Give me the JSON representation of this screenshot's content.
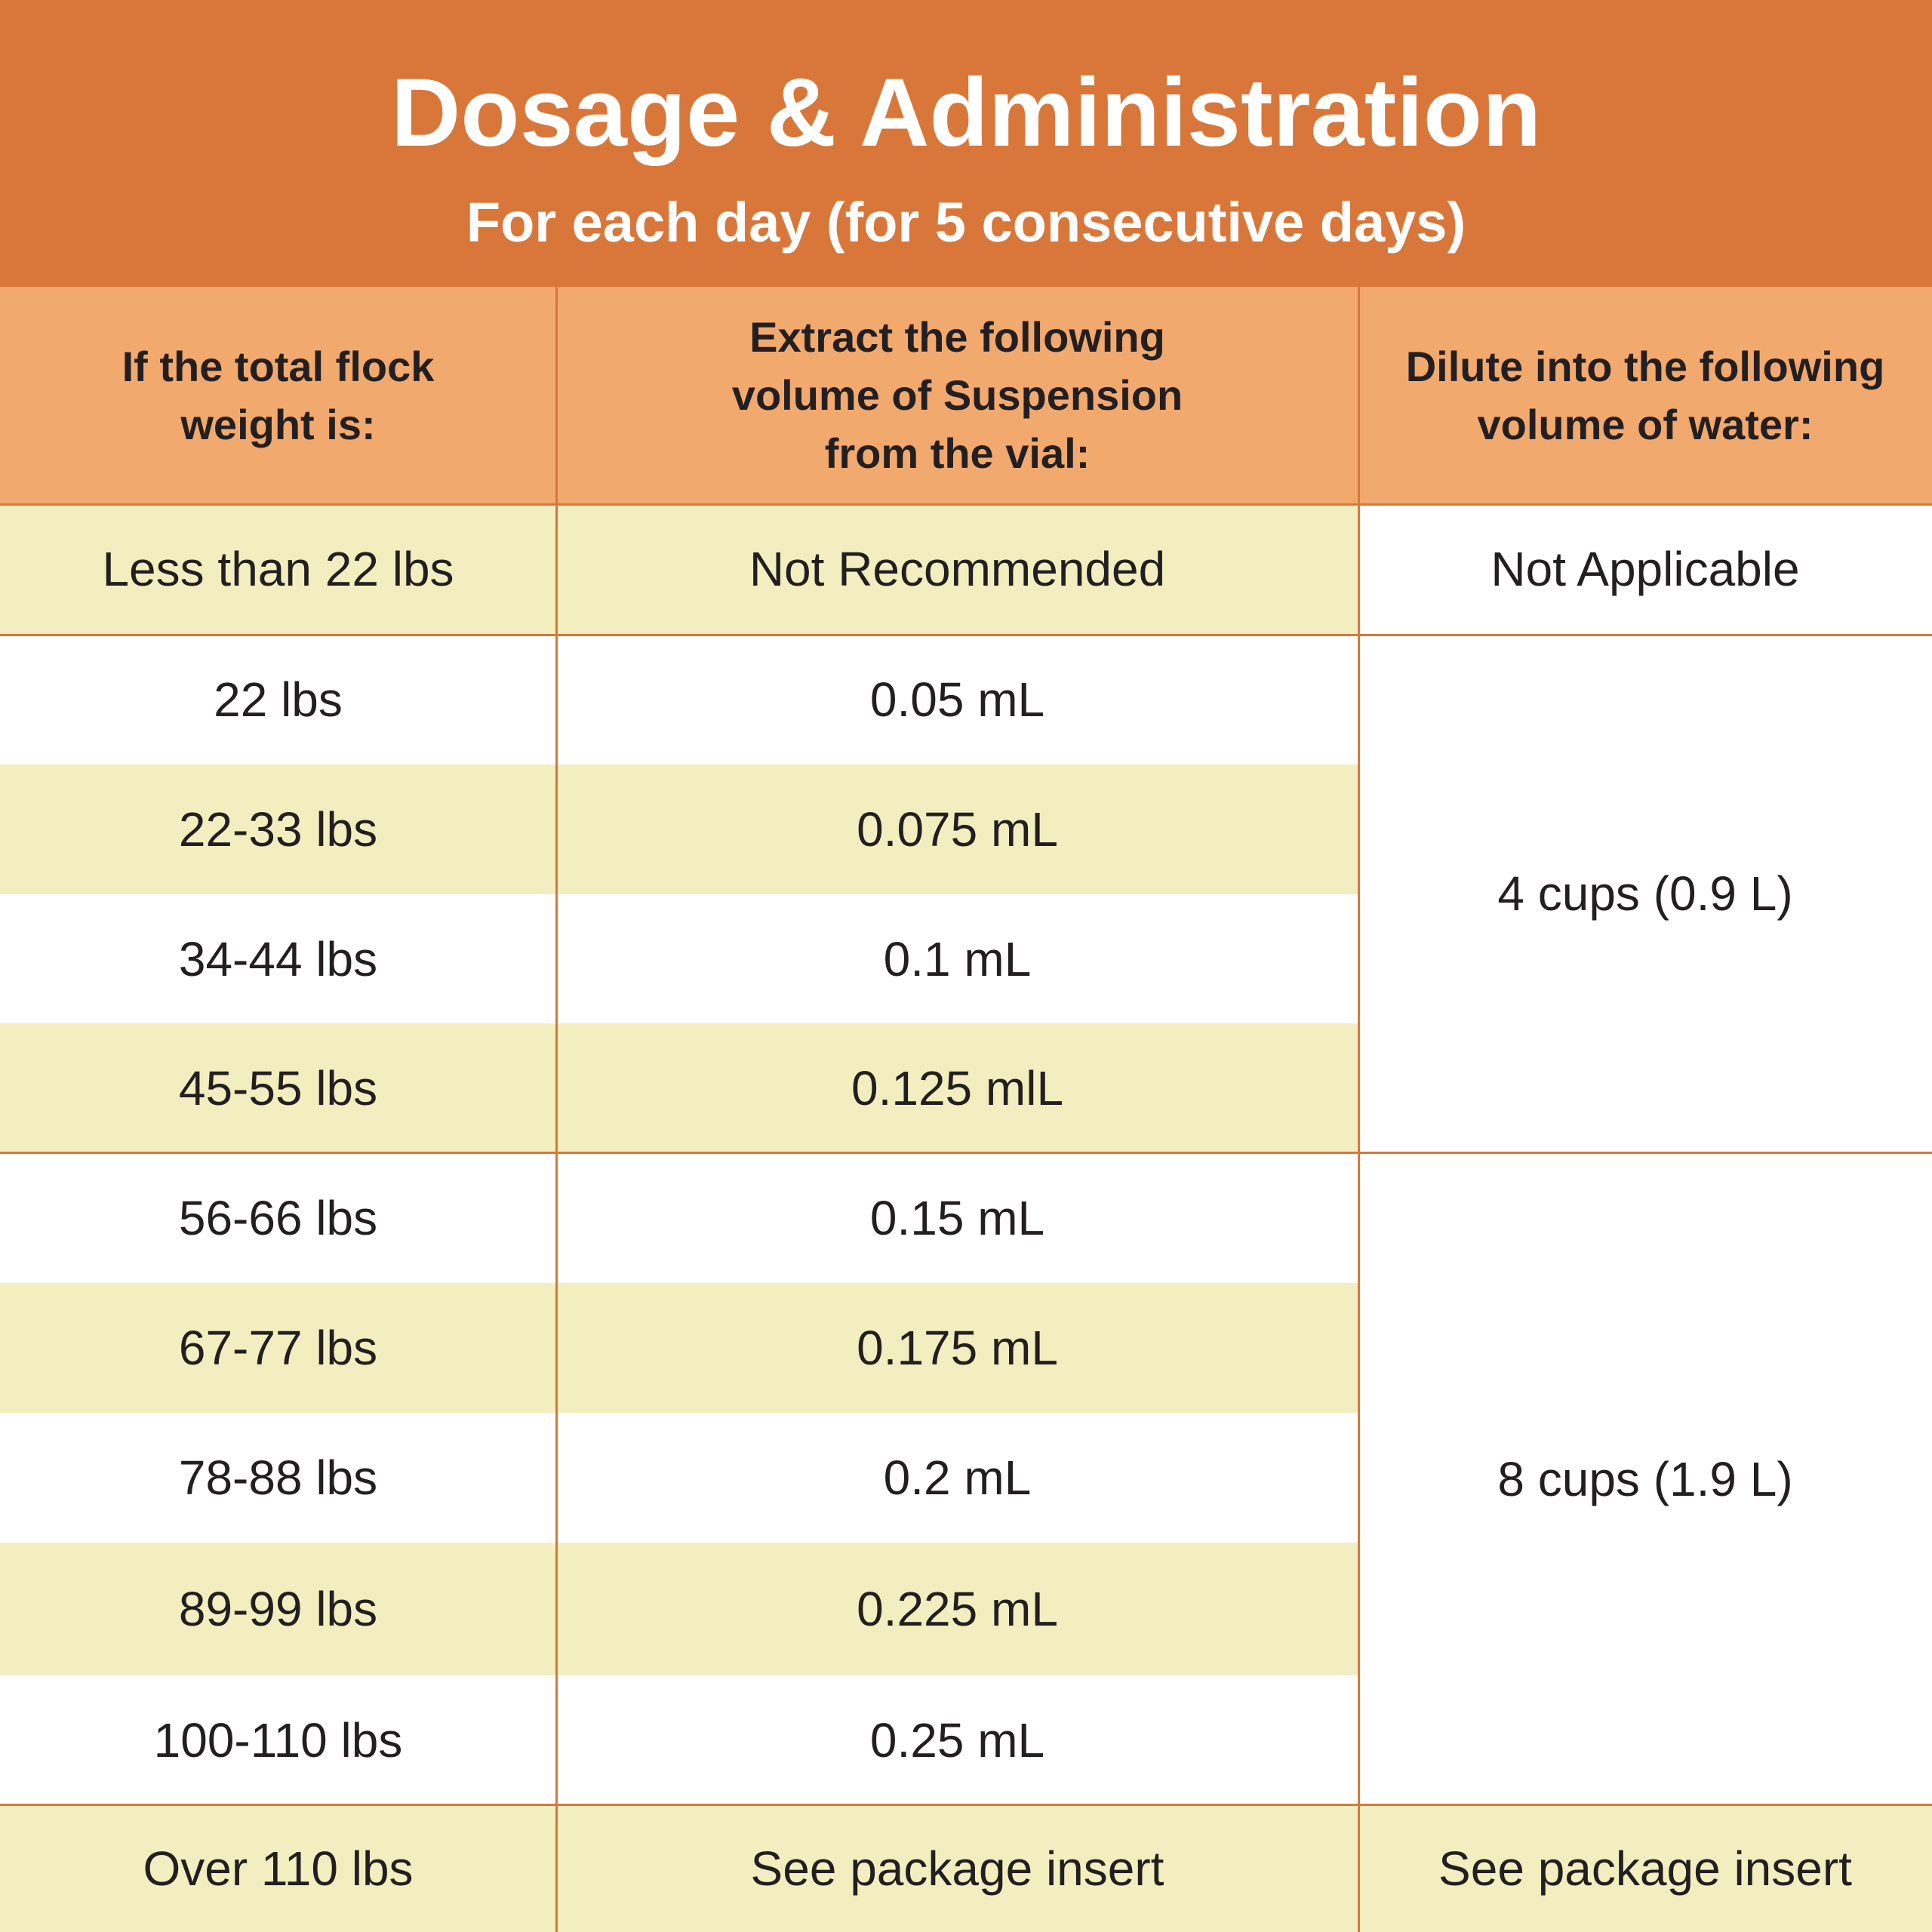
{
  "header": {
    "title": "Dosage & Administration",
    "subtitle": "For each day (for 5 consecutive days)"
  },
  "columns": [
    [
      "If the total flock",
      "weight is:"
    ],
    [
      "Extract the following",
      "volume of Suspension",
      "from the vial:"
    ],
    [
      "Dilute into the following",
      "volume of water:"
    ]
  ],
  "rows": [
    {
      "weight": "Less than 22 lbs",
      "volume": "Not Recommended"
    },
    {
      "weight": "22 lbs",
      "volume": "0.05 mL"
    },
    {
      "weight": "22-33 lbs",
      "volume": "0.075 mL"
    },
    {
      "weight": "34-44 lbs",
      "volume": "0.1 mL"
    },
    {
      "weight": "45-55 lbs",
      "volume": "0.125 mlL"
    },
    {
      "weight": "56-66 lbs",
      "volume": "0.15 mL"
    },
    {
      "weight": "67-77 lbs",
      "volume": "0.175 mL"
    },
    {
      "weight": "78-88 lbs",
      "volume": "0.2 mL"
    },
    {
      "weight": "89-99 lbs",
      "volume": "0.225 mL"
    },
    {
      "weight": "100-110 lbs",
      "volume": "0.25 mL"
    },
    {
      "weight": "Over 110 lbs",
      "volume": "See package insert"
    }
  ],
  "water": [
    "Not Applicable",
    "4 cups (0.9 L)",
    "8 cups (1.9 L)",
    "See package insert"
  ]
}
